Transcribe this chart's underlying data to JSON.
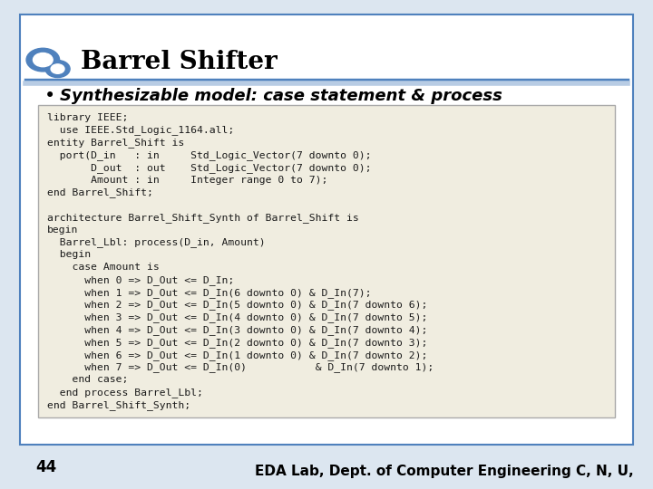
{
  "title": "Barrel Shifter",
  "bullet": "Synthesizable model: case statement & process",
  "page_number": "44",
  "footer": "EDA Lab, Dept. of Computer Engineering C, N, U,",
  "slide_bg": "#dce6f0",
  "content_bg": "#ffffff",
  "code_lines": [
    "library IEEE;",
    "  use IEEE.Std_Logic_1164.all;",
    "entity Barrel_Shift is",
    "  port(D_in   : in     Std_Logic_Vector(7 downto 0);",
    "       D_out  : out    Std_Logic_Vector(7 downto 0);",
    "       Amount : in     Integer range 0 to 7);",
    "end Barrel_Shift;",
    "",
    "architecture Barrel_Shift_Synth of Barrel_Shift is",
    "begin",
    "  Barrel_Lbl: process(D_in, Amount)",
    "  begin",
    "    case Amount is",
    "      when 0 => D_Out <= D_In;",
    "      when 1 => D_Out <= D_In(6 downto 0) & D_In(7);",
    "      when 2 => D_Out <= D_In(5 downto 0) & D_In(7 downto 6);",
    "      when 3 => D_Out <= D_In(4 downto 0) & D_In(7 downto 5);",
    "      when 4 => D_Out <= D_In(3 downto 0) & D_In(7 downto 4);",
    "      when 5 => D_Out <= D_In(2 downto 0) & D_In(7 downto 3);",
    "      when 6 => D_Out <= D_In(1 downto 0) & D_In(7 downto 2);",
    "      when 7 => D_Out <= D_In(0)           & D_In(7 downto 1);",
    "    end case;",
    "  end process Barrel_Lbl;",
    "end Barrel_Shift_Synth;"
  ],
  "title_color": "#000000",
  "title_fontsize": 20,
  "bullet_fontsize": 13,
  "code_fontsize": 8.2,
  "footer_fontsize": 11,
  "line_color_dark": "#4f81bd",
  "line_color_light": "#b8cce4",
  "code_bg": "#f0ede0"
}
